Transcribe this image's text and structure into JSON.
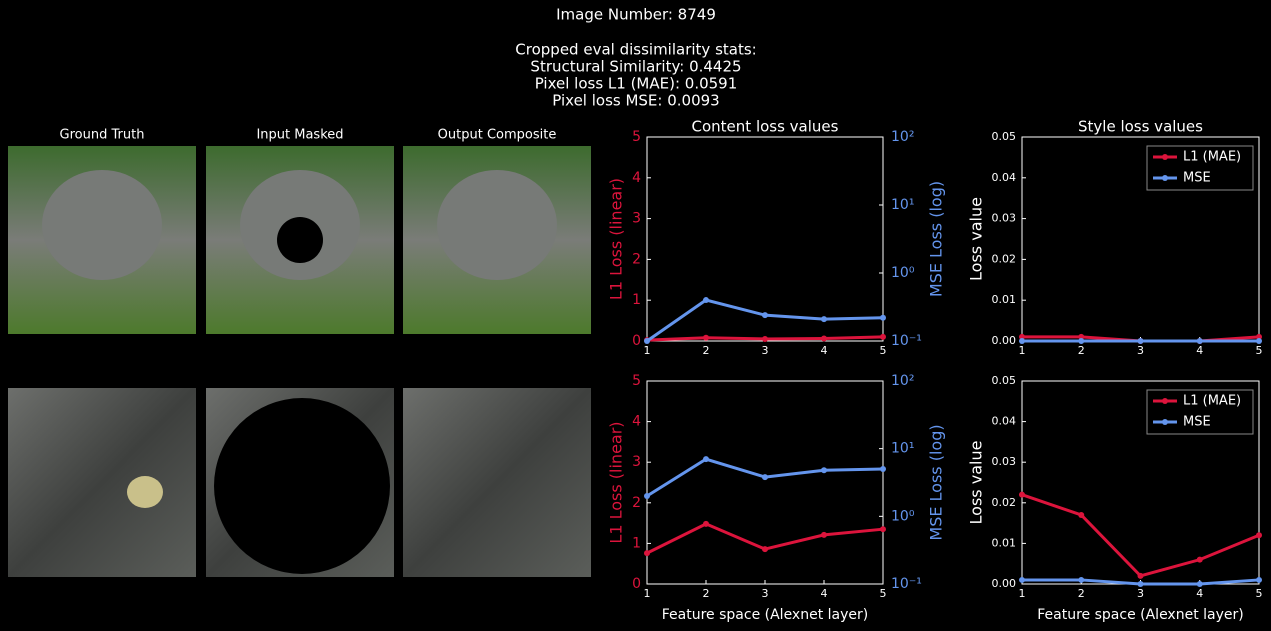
{
  "header": {
    "lines": [
      "Image Number: 8749",
      "Cropped eval dissimilarity stats:",
      "Structural Similarity: 0.4425",
      "Pixel loss L1 (MAE): 0.0591",
      "Pixel loss MSE: 0.0093"
    ]
  },
  "image_titles": [
    "Ground Truth",
    "Input Masked",
    "Output Composite"
  ],
  "chart_data": [
    {
      "type": "line",
      "title": "Content loss values",
      "ylabel": "L1 Loss (linear)",
      "y2label": "MSE Loss (log)",
      "x": [
        1,
        2,
        3,
        4,
        5
      ],
      "xlim": [
        1,
        5
      ],
      "xticks": [
        1,
        2,
        3,
        4,
        5
      ],
      "ylim": [
        0,
        5
      ],
      "yticks": [
        0,
        1,
        2,
        3,
        4,
        5
      ],
      "y2log": true,
      "y2lim": [
        0.1,
        100
      ],
      "y2ticks": [
        {
          "value": 0.1,
          "label": "10⁻¹"
        },
        {
          "value": 1,
          "label": "10⁰"
        },
        {
          "value": 10,
          "label": "10¹"
        },
        {
          "value": 100,
          "label": "10²"
        }
      ],
      "series": [
        {
          "name": "L1 (MAE)",
          "color": "#dc143c",
          "values": [
            0.02,
            0.08,
            0.05,
            0.06,
            0.1
          ]
        },
        {
          "name": "MSE",
          "color": "#6495ed",
          "axis": "y2",
          "values": [
            0.1,
            0.4,
            0.24,
            0.21,
            0.22
          ]
        }
      ]
    },
    {
      "type": "line",
      "title": "Style loss values",
      "ylabel": "Loss value",
      "legend": "upper right",
      "x": [
        1,
        2,
        3,
        4,
        5
      ],
      "xlim": [
        1,
        5
      ],
      "xticks": [
        1,
        2,
        3,
        4,
        5
      ],
      "ylim": [
        0,
        0.05
      ],
      "yticks": [
        {
          "value": 0,
          "label": "0.00"
        },
        {
          "value": 0.01,
          "label": "0.01"
        },
        {
          "value": 0.02,
          "label": "0.02"
        },
        {
          "value": 0.03,
          "label": "0.03"
        },
        {
          "value": 0.04,
          "label": "0.04"
        },
        {
          "value": 0.05,
          "label": "0.05"
        }
      ],
      "series": [
        {
          "name": "L1 (MAE)",
          "color": "#dc143c",
          "values": [
            0.001,
            0.001,
            0,
            0,
            0.001
          ]
        },
        {
          "name": "MSE",
          "color": "#6495ed",
          "values": [
            0,
            0,
            0,
            0,
            0
          ]
        }
      ]
    },
    {
      "type": "line",
      "ylabel": "L1 Loss (linear)",
      "y2label": "MSE Loss (log)",
      "xlabel": "Feature space (Alexnet layer)",
      "x": [
        1,
        2,
        3,
        4,
        5
      ],
      "xlim": [
        1,
        5
      ],
      "xticks": [
        1,
        2,
        3,
        4,
        5
      ],
      "ylim": [
        0,
        5
      ],
      "yticks": [
        0,
        1,
        2,
        3,
        4,
        5
      ],
      "y2log": true,
      "y2lim": [
        0.1,
        100
      ],
      "y2ticks": [
        {
          "value": 0.1,
          "label": "10⁻¹"
        },
        {
          "value": 1,
          "label": "10⁰"
        },
        {
          "value": 10,
          "label": "10¹"
        },
        {
          "value": 100,
          "label": "10²"
        }
      ],
      "series": [
        {
          "name": "L1 (MAE)",
          "color": "#dc143c",
          "values": [
            0.76,
            1.48,
            0.86,
            1.21,
            1.35
          ]
        },
        {
          "name": "MSE",
          "color": "#6495ed",
          "axis": "y2",
          "values": [
            2.0,
            7.0,
            3.8,
            4.8,
            5.0
          ]
        }
      ]
    },
    {
      "type": "line",
      "ylabel": "Loss value",
      "xlabel": "Feature space (Alexnet layer)",
      "legend": "upper right",
      "x": [
        1,
        2,
        3,
        4,
        5
      ],
      "xlim": [
        1,
        5
      ],
      "xticks": [
        1,
        2,
        3,
        4,
        5
      ],
      "ylim": [
        0,
        0.05
      ],
      "yticks": [
        {
          "value": 0,
          "label": "0.00"
        },
        {
          "value": 0.01,
          "label": "0.01"
        },
        {
          "value": 0.02,
          "label": "0.02"
        },
        {
          "value": 0.03,
          "label": "0.03"
        },
        {
          "value": 0.04,
          "label": "0.04"
        },
        {
          "value": 0.05,
          "label": "0.05"
        }
      ],
      "series": [
        {
          "name": "L1 (MAE)",
          "color": "#dc143c",
          "values": [
            0.022,
            0.017,
            0.002,
            0.006,
            0.012
          ]
        },
        {
          "name": "MSE",
          "color": "#6495ed",
          "values": [
            0.001,
            0.001,
            0,
            0,
            0.001
          ]
        }
      ]
    }
  ]
}
